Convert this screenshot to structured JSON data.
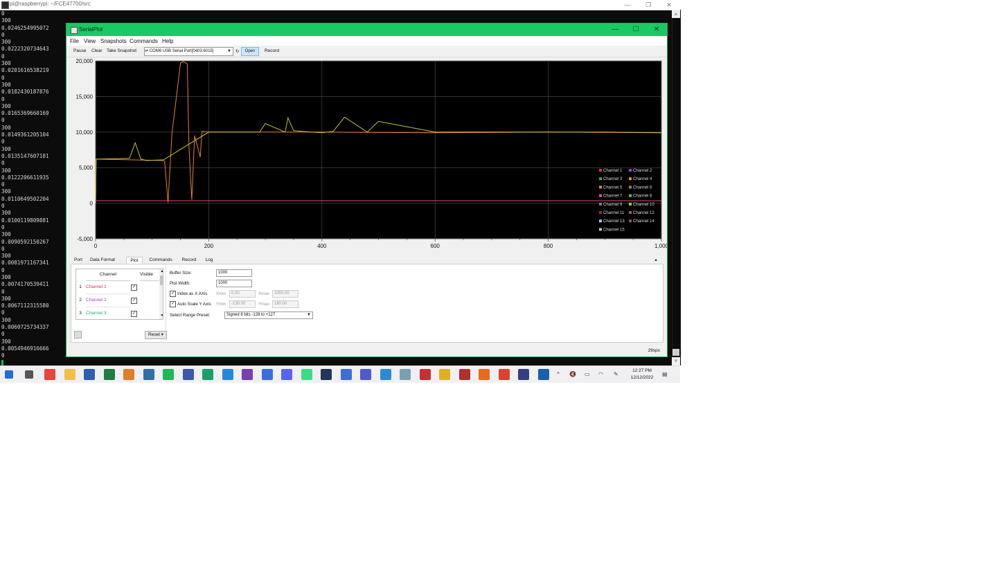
{
  "terminal": {
    "title": "pi@raspberrypi: ~/FCE47700/src",
    "lines": [
      "0",
      "300",
      "0.0246254995072",
      "0",
      "300",
      "0.0222320734643",
      "0",
      "300",
      "0.0201616538219",
      "0",
      "300",
      "0.0182430187876",
      "0",
      "300",
      "0.0165369660169",
      "0",
      "300",
      "0.0149361205104",
      "0",
      "300",
      "0.0135147607181",
      "0",
      "300",
      "0.0122206611935",
      "0",
      "300",
      "0.0110649502204",
      "0",
      "300",
      "0.0100119809881",
      "0",
      "300",
      "0.0090592150267",
      "0",
      "300",
      "0.0081971167341",
      "0",
      "300",
      "0.0074170539411",
      "0",
      "300",
      "0.0067112315580",
      "0",
      "300",
      "0.0060725734337",
      "0",
      "300",
      "0.0054946916666",
      "0"
    ]
  },
  "window": {
    "title": "SerialPlot",
    "menu": [
      "File",
      "View",
      "Snapshots",
      "Commands",
      "Help"
    ],
    "toolbar": {
      "pause": "Pause",
      "clear": "Clear",
      "snapshot": "Take Snapshot",
      "port": "COM6 USB Serial Port[0403:6015]",
      "open": "Open",
      "record": "Record"
    },
    "tabs": [
      "Port",
      "Data Format",
      "Plot",
      "Commands",
      "Record",
      "Log"
    ],
    "active_tab": "Plot",
    "status_fps": "29sps"
  },
  "channel_table": {
    "header_channel": "Channel",
    "header_visible": "Visible",
    "rows": [
      {
        "num": "1",
        "name": "Channel 1",
        "color": "#e0304a",
        "checked": "✓"
      },
      {
        "num": "2",
        "name": "Channel 2",
        "color": "#a040d8",
        "checked": "✓"
      },
      {
        "num": "3",
        "name": "Channel 3",
        "color": "#20b070",
        "checked": "✓"
      }
    ],
    "reset": "Reset"
  },
  "plot_settings": {
    "buffer_label": "Buffer Size:",
    "buffer_value": "1000",
    "width_label": "Plot Width:",
    "width_value": "1000",
    "index_label": "Index as X AXis",
    "xmin_label": "Xmin",
    "xmin_value": "0.00",
    "xmax_label": "Xmax",
    "xmax_value": "1000.00",
    "autoscale_label": "Auto Scale Y Axis",
    "ymin_label": "Ymin",
    "ymin_value": "-130.00",
    "ymax_label": "Ymax",
    "ymax_value": "180.00",
    "preset_label": "Select Range Preset:",
    "preset_value": "Signed 8 bits -128 to +127",
    "check": "✓"
  },
  "chart_data": {
    "type": "line",
    "xlim": [
      0,
      1000
    ],
    "ylim": [
      -5000,
      20000
    ],
    "x_ticks": [
      "0",
      "200",
      "400",
      "600",
      "800",
      "1,000"
    ],
    "y_ticks": [
      "20,000",
      "15,000",
      "10,000",
      "5,000",
      "0",
      "-5,000"
    ],
    "grid": true,
    "legend_position": "bottom-right",
    "legend": [
      {
        "name": "Channel 1",
        "color": "#e0304a"
      },
      {
        "name": "Channel 2",
        "color": "#a040d8"
      },
      {
        "name": "Channel 3",
        "color": "#20b070"
      },
      {
        "name": "Channel 4",
        "color": "#f09020"
      },
      {
        "name": "Channel 5",
        "color": "#e88070"
      },
      {
        "name": "Channel 6",
        "color": "#a08060"
      },
      {
        "name": "Channel 7",
        "color": "#e050a0"
      },
      {
        "name": "Channel 8",
        "color": "#60c040"
      },
      {
        "name": "Channel 9",
        "color": "#8080a0"
      },
      {
        "name": "Channel 10",
        "color": "#b0d020"
      },
      {
        "name": "Channel 11",
        "color": "#b02020"
      },
      {
        "name": "Channel 12",
        "color": "#a06040"
      },
      {
        "name": "Channel 13",
        "color": "#b0c0f0"
      },
      {
        "name": "Channel 14",
        "color": "#806060"
      },
      {
        "name": "Channel 15",
        "color": "#c0d080"
      }
    ],
    "series": [
      {
        "color": "#e88030",
        "x": [
          0,
          1,
          120,
          122,
          128,
          135,
          150,
          155,
          158,
          162,
          165,
          170,
          175,
          185,
          188,
          200,
          400,
          600,
          800,
          1000
        ],
        "y": [
          0,
          6200,
          6000,
          5900,
          100,
          9800,
          19700,
          19900,
          19800,
          19600,
          8000,
          500,
          9500,
          6500,
          10100,
          10000,
          10000,
          9900,
          10000,
          9900
        ]
      },
      {
        "color": "#c8c030",
        "x": [
          0,
          1,
          60,
          70,
          80,
          90,
          120,
          200,
          290,
          300,
          335,
          340,
          350,
          380,
          400,
          420,
          440,
          480,
          500,
          600,
          700,
          800,
          900,
          1000
        ],
        "y": [
          0,
          6200,
          6300,
          8500,
          6200,
          6000,
          6100,
          10000,
          10000,
          11200,
          10000,
          12000,
          10200,
          10000,
          9900,
          10100,
          12100,
          10000,
          11500,
          10000,
          10000,
          10000,
          10000,
          9900
        ]
      },
      {
        "color": "#e05070",
        "x": [
          0,
          200,
          1000
        ],
        "y": [
          350,
          350,
          350
        ]
      }
    ]
  },
  "taskbar": {
    "time": "12:27 PM",
    "date": "12/12/2022",
    "icons": [
      "windows-icon",
      "task-view-icon",
      "chrome-icon",
      "file-explorer-icon",
      "word-icon",
      "excel-icon",
      "outlook-icon",
      "calculator-icon",
      "spotify-icon",
      "network-tool-icon",
      "serialplot-icon",
      "vscode-icon",
      "visual-studio-icon",
      "messenger-icon",
      "discord-icon",
      "android-icon",
      "audacity-icon",
      "paint-icon",
      "teams-icon",
      "sketch-icon",
      "globe-icon",
      "photos-icon",
      "notepad-icon",
      "oscilloscope-icon",
      "git-icon",
      "media-icon",
      "eclipse-icon",
      "ve-icon"
    ],
    "icon_colors": [
      "#1f6fd0",
      "#555555",
      "#e8453c",
      "#f3c140",
      "#2b5fb0",
      "#1e7d42",
      "#e07d2a",
      "#2f6fa8",
      "#1db954",
      "#3a5aa8",
      "#1a9f6a",
      "#2688d8",
      "#7a3fb0",
      "#3b6fe0",
      "#5865f2",
      "#3ddc84",
      "#20365a",
      "#3a6fd8",
      "#5059c9",
      "#2b8ad6",
      "#7aa0b0",
      "#c83030",
      "#e0b020",
      "#b03030",
      "#e86a1a",
      "#e04030",
      "#363f80",
      "#1a5fb0"
    ]
  }
}
